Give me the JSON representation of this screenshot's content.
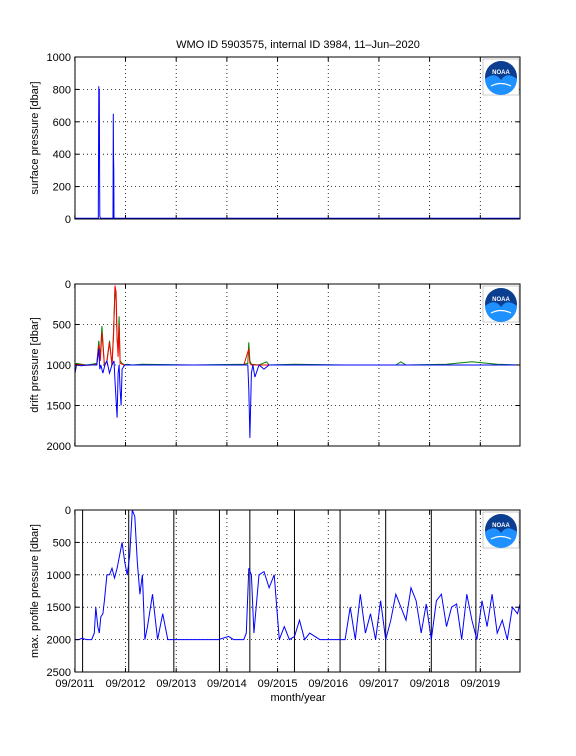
{
  "title": "WMO ID 5903575, internal ID 3984, 11–Jun–2020",
  "x_axis": {
    "label": "month/year",
    "ticks": [
      "09/2011",
      "09/2012",
      "09/2013",
      "09/2014",
      "09/2015",
      "09/2016",
      "09/2017",
      "09/2018",
      "09/2019"
    ]
  },
  "colors": {
    "axes": "#000000",
    "series_blue": "#0000ff",
    "series_red": "#ff0000",
    "series_green": "#008000"
  },
  "logo": {
    "icon": "noaa-logo-icon",
    "text": "NOAA"
  },
  "chart_data": [
    {
      "type": "line",
      "ylabel": "surface pressure [dbar]",
      "ylim": [
        0,
        1000
      ],
      "y_reversed": false,
      "yticks": [
        0,
        200,
        400,
        600,
        800,
        1000
      ],
      "xlim": [
        2011.67,
        2020.45
      ],
      "grid": "dotted",
      "series": [
        {
          "color": "blue",
          "x": [
            2011.67,
            2011.7,
            2011.72,
            2011.75,
            2011.8,
            2011.9,
            2012.0,
            2012.1,
            2012.13,
            2012.14,
            2012.145,
            2012.15,
            2012.155,
            2012.16,
            2012.17,
            2012.2,
            2012.3,
            2012.4,
            2012.42,
            2012.425,
            2012.43,
            2012.435,
            2012.44,
            2012.45,
            2012.5,
            2013.0,
            2014.0,
            2015.0,
            2016.0,
            2017.0,
            2018.0,
            2019.0,
            2020.0,
            2020.45
          ],
          "y": [
            5,
            5,
            5,
            5,
            5,
            5,
            5,
            5,
            5,
            820,
            600,
            800,
            300,
            20,
            5,
            5,
            5,
            5,
            5,
            650,
            400,
            300,
            5,
            5,
            5,
            5,
            5,
            5,
            5,
            5,
            5,
            5,
            5,
            5
          ]
        }
      ]
    },
    {
      "type": "line",
      "ylabel": "drift pressure [dbar]",
      "ylim": [
        0,
        2000
      ],
      "y_reversed": true,
      "yticks": [
        0,
        500,
        1000,
        1500,
        2000
      ],
      "xlim": [
        2011.67,
        2020.45
      ],
      "grid": "dotted",
      "series": [
        {
          "color": "green",
          "x": [
            2011.67,
            2011.7,
            2011.8,
            2011.9,
            2012.0,
            2012.1,
            2012.14,
            2012.17,
            2012.2,
            2012.25,
            2012.3,
            2012.35,
            2012.4,
            2012.43,
            2012.46,
            2012.48,
            2012.5,
            2012.52,
            2012.54,
            2012.56,
            2012.6,
            2012.65,
            2012.7,
            2012.8,
            2013.0,
            2014.0,
            2015.0,
            2015.08,
            2015.1,
            2015.12,
            2015.15,
            2015.3,
            2015.45,
            2015.5,
            2016.0,
            2017.0,
            2018.0,
            2018.1,
            2018.2,
            2019.0,
            2019.5,
            2020.0,
            2020.45
          ],
          "y": [
            1000,
            980,
            990,
            1000,
            990,
            980,
            700,
            900,
            520,
            1000,
            950,
            700,
            1000,
            600,
            50,
            200,
            700,
            800,
            400,
            950,
            980,
            1000,
            990,
            1000,
            990,
            1000,
            990,
            980,
            720,
            950,
            990,
            1000,
            960,
            1000,
            990,
            1000,
            1000,
            960,
            1000,
            990,
            960,
            990,
            1000
          ]
        },
        {
          "color": "red",
          "x": [
            2011.67,
            2011.7,
            2011.8,
            2011.9,
            2012.0,
            2012.1,
            2012.14,
            2012.17,
            2012.2,
            2012.25,
            2012.3,
            2012.35,
            2012.4,
            2012.43,
            2012.46,
            2012.48,
            2012.5,
            2012.52,
            2012.54,
            2012.56,
            2012.6,
            2012.65,
            2012.7,
            2012.8,
            2013.0,
            2014.0,
            2015.0,
            2015.1,
            2015.12,
            2015.15,
            2015.3,
            2015.5,
            2016.0,
            2017.0,
            2018.0,
            2019.0,
            2020.0,
            2020.45
          ],
          "y": [
            1010,
            990,
            1000,
            1005,
            1000,
            990,
            750,
            950,
            600,
            1000,
            960,
            720,
            1000,
            650,
            20,
            100,
            650,
            900,
            500,
            980,
            990,
            1000,
            1000,
            1000,
            1000,
            1000,
            1000,
            800,
            980,
            1000,
            1000,
            1000,
            1000,
            1000,
            1000,
            1000,
            1000,
            1000
          ]
        },
        {
          "color": "blue",
          "x": [
            2011.67,
            2011.7,
            2011.8,
            2011.9,
            2012.0,
            2012.1,
            2012.14,
            2012.16,
            2012.18,
            2012.22,
            2012.26,
            2012.3,
            2012.35,
            2012.4,
            2012.44,
            2012.46,
            2012.5,
            2012.52,
            2012.54,
            2012.56,
            2012.58,
            2012.6,
            2012.65,
            2012.7,
            2012.8,
            2013.0,
            2014.0,
            2015.0,
            2015.08,
            2015.1,
            2015.12,
            2015.15,
            2015.18,
            2015.22,
            2015.3,
            2015.4,
            2015.5,
            2016.0,
            2017.0,
            2018.0,
            2019.0,
            2020.0,
            2020.45
          ],
          "y": [
            1100,
            1000,
            1010,
            1000,
            1000,
            1000,
            800,
            1050,
            1000,
            1100,
            1000,
            950,
            1100,
            1000,
            950,
            1200,
            1650,
            1100,
            1000,
            1300,
            1500,
            1050,
            1000,
            1000,
            1000,
            1000,
            1000,
            1000,
            1000,
            1300,
            1900,
            1100,
            1000,
            1150,
            1000,
            1050,
            1000,
            1000,
            1000,
            1000,
            1000,
            1000,
            1000
          ]
        }
      ]
    },
    {
      "type": "line",
      "ylabel": "max. profile pressure [dbar]",
      "ylim": [
        0,
        2500
      ],
      "y_reversed": true,
      "yticks": [
        0,
        500,
        1000,
        1500,
        2000,
        2500
      ],
      "xlim": [
        2011.67,
        2020.45
      ],
      "grid": "dotted",
      "vertical_lines_x": [
        2011.82,
        2012.73,
        2013.62,
        2014.52,
        2015.12,
        2016.0,
        2016.9,
        2017.8,
        2018.7,
        2019.58
      ],
      "series": [
        {
          "color": "blue",
          "x": [
            2011.67,
            2011.75,
            2011.8,
            2011.9,
            2012.0,
            2012.05,
            2012.08,
            2012.12,
            2012.15,
            2012.18,
            2012.22,
            2012.25,
            2012.3,
            2012.35,
            2012.4,
            2012.45,
            2012.5,
            2012.55,
            2012.6,
            2012.65,
            2012.7,
            2012.75,
            2012.8,
            2012.85,
            2012.9,
            2012.95,
            2013.0,
            2013.05,
            2013.1,
            2013.2,
            2013.3,
            2013.4,
            2013.5,
            2013.6,
            2013.7,
            2014.0,
            2014.5,
            2014.7,
            2014.8,
            2015.0,
            2015.05,
            2015.1,
            2015.15,
            2015.2,
            2015.3,
            2015.4,
            2015.5,
            2015.6,
            2015.7,
            2015.8,
            2015.9,
            2016.0,
            2016.1,
            2016.2,
            2016.3,
            2016.5,
            2016.8,
            2017.0,
            2017.1,
            2017.2,
            2017.3,
            2017.4,
            2017.5,
            2017.6,
            2017.7,
            2017.8,
            2017.9,
            2018.0,
            2018.1,
            2018.2,
            2018.3,
            2018.4,
            2018.5,
            2018.6,
            2018.7,
            2018.8,
            2018.9,
            2019.0,
            2019.1,
            2019.2,
            2019.3,
            2019.4,
            2019.5,
            2019.6,
            2019.7,
            2019.8,
            2019.9,
            2020.0,
            2020.1,
            2020.2,
            2020.3,
            2020.4,
            2020.45
          ],
          "y": [
            2000,
            2000,
            1980,
            2000,
            2000,
            1900,
            1500,
            1800,
            1900,
            1650,
            1600,
            1400,
            1000,
            1000,
            900,
            1050,
            900,
            700,
            500,
            800,
            1000,
            700,
            0,
            100,
            800,
            1300,
            1000,
            2000,
            1800,
            1300,
            2000,
            1600,
            2000,
            2000,
            2000,
            2000,
            2000,
            1950,
            2000,
            2000,
            1900,
            900,
            1000,
            1900,
            1000,
            950,
            1200,
            1000,
            2000,
            1800,
            2000,
            1950,
            1700,
            2000,
            1900,
            2000,
            2000,
            2000,
            1500,
            2000,
            1300,
            1900,
            1600,
            2000,
            1400,
            2000,
            1700,
            1300,
            1500,
            1700,
            1200,
            1400,
            1900,
            1450,
            2000,
            1400,
            1300,
            1800,
            1500,
            1450,
            2000,
            1300,
            1700,
            2000,
            1400,
            1800,
            1300,
            1900,
            1700,
            2000,
            1500,
            1600,
            1450
          ]
        }
      ]
    }
  ]
}
